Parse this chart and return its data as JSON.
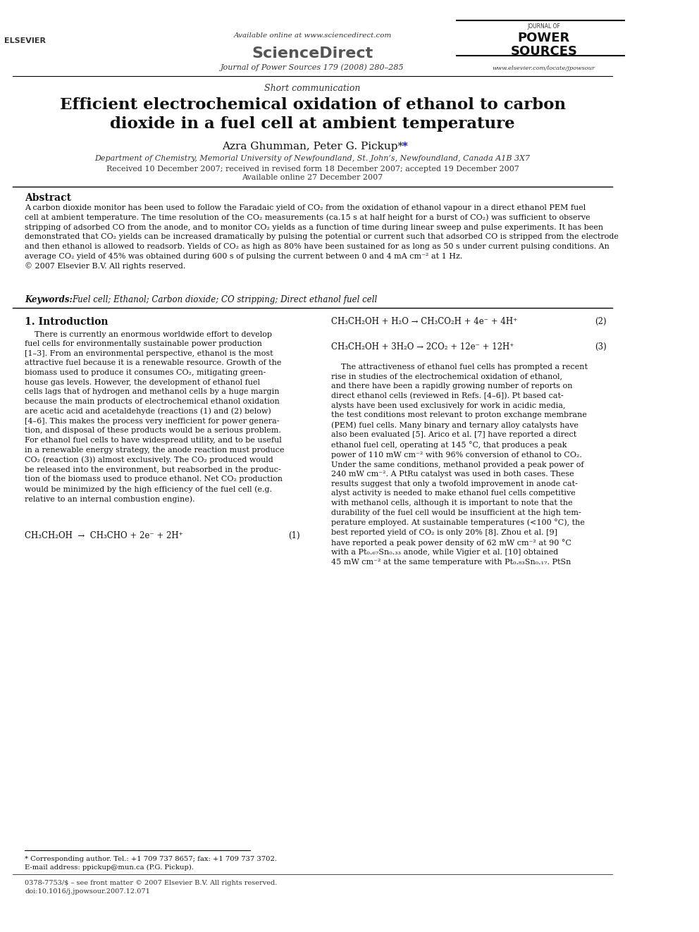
{
  "bg_color": "#ffffff",
  "page_width": 9.92,
  "page_height": 13.23,
  "header": {
    "available_online": "Available online at www.sciencedirect.com",
    "journal_info": "Journal of Power Sources 179 (2008) 280–285",
    "website": "www.elsevier.com/locate/jpowsour"
  },
  "article_type": "Short communication",
  "title": "Efficient electrochemical oxidation of ethanol to carbon\ndioxide in a fuel cell at ambient temperature",
  "authors": "Azra Ghumman, Peter G. Pickup*",
  "affiliation": "Department of Chemistry, Memorial University of Newfoundland, St. John’s, Newfoundland, Canada A1B 3X7",
  "dates": "Received 10 December 2007; received in revised form 18 December 2007; accepted 19 December 2007",
  "available_online_date": "Available online 27 December 2007",
  "abstract_title": "Abstract",
  "abstract_text": "A carbon dioxide monitor has been used to follow the Faradaic yield of CO₂ from the oxidation of ethanol vapour in a direct ethanol PEM fuel\ncell at ambient temperature. The time resolution of the CO₂ measurements (ca.15 s at half height for a burst of CO₂) was sufficient to observe\nstripping of adsorbed CO from the anode, and to monitor CO₂ yields as a function of time during linear sweep and pulse experiments. It has been\ndemonstrated that CO₂ yields can be increased dramatically by pulsing the potential or current such that adsorbed CO is stripped from the electrode\nand then ethanol is allowed to readsorb. Yields of CO₂ as high as 80% have been sustained for as long as 50 s under current pulsing conditions. An\naverage CO₂ yield of 45% was obtained during 600 s of pulsing the current between 0 and 4 mA cm⁻² at 1 Hz.\n© 2007 Elsevier B.V. All rights reserved.",
  "keywords_label": "Keywords:",
  "keywords": "Fuel cell; Ethanol; Carbon dioxide; CO stripping; Direct ethanol fuel cell",
  "section1_title": "1. Introduction",
  "section1_col1": "    There is currently an enormous worldwide effort to develop\nfuel cells for environmentally sustainable power production\n[1–3]. From an environmental perspective, ethanol is the most\nattractive fuel because it is a renewable resource. Growth of the\nbiomass used to produce it consumes CO₂, mitigating green-\nhouse gas levels. However, the development of ethanol fuel\ncells lags that of hydrogen and methanol cells by a huge margin\nbecause the main products of electrochemical ethanol oxidation\nare acetic acid and acetaldehyde (reactions (1) and (2) below)\n[4–6]. This makes the process very inefficient for power genera-\ntion, and disposal of these products would be a serious problem.\nFor ethanol fuel cells to have widespread utility, and to be useful\nin a renewable energy strategy, the anode reaction must produce\nCO₂ (reaction (3)) almost exclusively. The CO₂ produced would\nbe released into the environment, but reabsorbed in the produc-\ntion of the biomass used to produce ethanol. Net CO₂ production\nwould be minimized by the high efficiency of the fuel cell (e.g.\nrelative to an internal combustion engine).",
  "eq1": "CH₃CH₂OH  →  CH₃CHO + 2e⁻ + 2H⁺",
  "eq1_num": "(1)",
  "eq2": "CH₃CH₂OH + H₂O → CH₃CO₂H + 4e⁻ + 4H⁺",
  "eq2_num": "(2)",
  "eq3": "CH₃CH₂OH + 3H₂O → 2CO₂ + 12e⁻ + 12H⁺",
  "eq3_num": "(3)",
  "section1_col2_para1": "    The attractiveness of ethanol fuel cells has prompted a recent\nrise in studies of the electrochemical oxidation of ethanol,\nand there have been a rapidly growing number of reports on\ndirect ethanol cells (reviewed in Refs. [4–6]). Pt based cat-\nalysts have been used exclusively for work in acidic media,\nthe test conditions most relevant to proton exchange membrane\n(PEM) fuel cells. Many binary and ternary alloy catalysts have\nalso been evaluated [5]. Arico et al. [7] have reported a direct\nethanol fuel cell, operating at 145 °C, that produces a peak\npower of 110 mW cm⁻² with 96% conversion of ethanol to CO₂.\nUnder the same conditions, methanol provided a peak power of\n240 mW cm⁻². A PtRu catalyst was used in both cases. These\nresults suggest that only a twofold improvement in anode cat-\nalyst activity is needed to make ethanol fuel cells competitive\nwith methanol cells, although it is important to note that the\ndurability of the fuel cell would be insufficient at the high tem-\nperature employed. At sustainable temperatures (<100 °C), the\nbest reported yield of CO₂ is only 20% [8]. Zhou et al. [9]\nhave reported a peak power density of 62 mW cm⁻² at 90 °C\nwith a Pt₀.₆₇Sn₀.₃₃ anode, while Vigier et al. [10] obtained\n45 mW cm⁻² at the same temperature with Pt₀.₈₃Sn₀.₁₇. PtSn",
  "footnote_star": "* Corresponding author. Tel.: +1 709 737 8657; fax: +1 709 737 3702.",
  "footnote_email": "E-mail address: ppickup@mun.ca (P.G. Pickup).",
  "footer_left": "0378-7753/$ – see front matter © 2007 Elsevier B.V. All rights reserved.",
  "footer_doi": "doi:10.1016/j.jpowsour.2007.12.071"
}
